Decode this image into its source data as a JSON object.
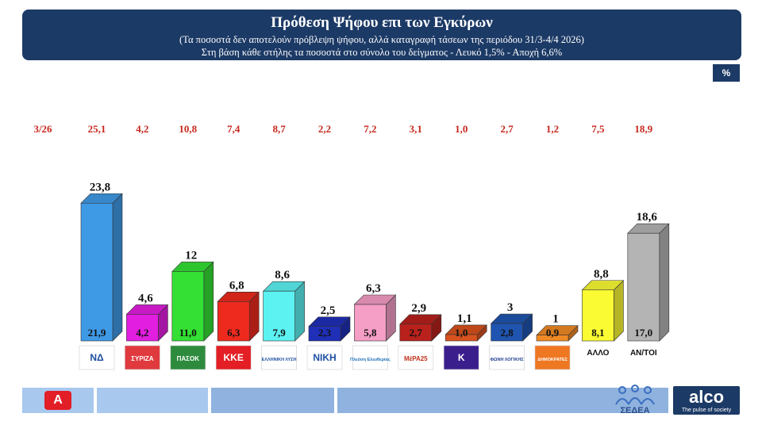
{
  "chart_data": {
    "type": "bar",
    "title": "Πρόθεση Ψήφου επι των Εγκύρων",
    "subtitle_lines": [
      "(Τα ποσοστά δεν αποτελούν πρόβλεψη ψήφου, αλλά καταγραφή τάσεων της περιόδου  31/3-4/4 2026)",
      "Στη βάση κάθε στήλης τα ποσοστά στο σύνολο του δείγματος - Λευκό 1,5% - Αποχή 6,6%"
    ],
    "unit": "%",
    "previous_label": "3/26",
    "ylim": [
      0,
      25
    ],
    "grid": false,
    "legend": "none",
    "series": [
      {
        "values": [
          23.8,
          4.6,
          12,
          6.8,
          8.6,
          2.5,
          6.3,
          2.9,
          1.1,
          3,
          1,
          8.8,
          18.6
        ]
      },
      {
        "values": [
          21.9,
          4.2,
          11.0,
          6.3,
          7.9,
          2.3,
          5.8,
          2.7,
          1.0,
          2.8,
          0.9,
          8.1,
          17.0
        ]
      }
    ],
    "categories": [
      {
        "color": "#3f9ae6",
        "top_label": "23,8",
        "base_label": "21,9",
        "prev": "25,1",
        "logo": "ΝΔ",
        "logo_bg": "#ffffff",
        "logo_fg": "#1d4fa0"
      },
      {
        "color": "#e21ee0",
        "top_label": "4,6",
        "base_label": "4,2",
        "prev": "4,2",
        "logo": "ΣΥΡΙΖΑ",
        "logo_bg": "#e03a3e",
        "logo_fg": "#ffffff"
      },
      {
        "color": "#33e033",
        "top_label": "12",
        "base_label": "11,0",
        "prev": "10,8",
        "logo": "ΠΑΣΟΚ",
        "logo_bg": "#2e8b3d",
        "logo_fg": "#ffffff"
      },
      {
        "color": "#ee2a1e",
        "top_label": "6,8",
        "base_label": "6,3",
        "prev": "7,4",
        "logo": "ΚΚΕ",
        "logo_bg": "#e31e24",
        "logo_fg": "#ffffff"
      },
      {
        "color": "#5cf2f2",
        "top_label": "8,6",
        "base_label": "7,9",
        "prev": "8,7",
        "logo": "ΕΛΛΗΝΙΚΗ ΛΥΣΗ",
        "logo_bg": "#ffffff",
        "logo_fg": "#1d4fa0"
      },
      {
        "color": "#1f2fb8",
        "top_label": "2,5",
        "base_label": "2,3",
        "prev": "2,2",
        "logo": "ΝΙΚΗ",
        "logo_bg": "#ffffff",
        "logo_fg": "#1d4fa0"
      },
      {
        "color": "#f59ec6",
        "top_label": "6,3",
        "base_label": "5,8",
        "prev": "7,2",
        "logo": "Πλεύση Ελευθερίας",
        "logo_bg": "#ffffff",
        "logo_fg": "#1d6fb8"
      },
      {
        "color": "#b8211c",
        "top_label": "2,9",
        "base_label": "2,7",
        "prev": "3,1",
        "logo": "ΜέΡΑ25",
        "logo_bg": "#ffffff",
        "logo_fg": "#c0301c"
      },
      {
        "color": "#d8521e",
        "top_label": "1,1",
        "base_label": "1,0",
        "prev": "1,0",
        "logo": "Κ",
        "logo_bg": "#3a1e8c",
        "logo_fg": "#ffffff"
      },
      {
        "color": "#1f55b0",
        "top_label": "3",
        "base_label": "2,8",
        "prev": "2,7",
        "logo": "ΦΩΝΗ ΛΟΓΙΚΗΣ",
        "logo_bg": "#ffffff",
        "logo_fg": "#1d3f8c"
      },
      {
        "color": "#f08a24",
        "top_label": "1",
        "base_label": "0,9",
        "prev": "1,2",
        "logo": "ΔΗΜΟΚΡΑΤΕΣ",
        "logo_bg": "#ee7722",
        "logo_fg": "#ffffff"
      },
      {
        "color": "#fbfb34",
        "top_label": "8,8",
        "base_label": "8,1",
        "prev": "7,5",
        "logo": "ΑΛΛΟ",
        "logo_bg": "#ffffff",
        "logo_fg": "#111111"
      },
      {
        "color": "#b4b4b4",
        "top_label": "18,6",
        "base_label": "17,0",
        "prev": "18,9",
        "logo": "ΑΝ/ΤΟΙ",
        "logo_bg": "#ffffff",
        "logo_fg": "#111111"
      }
    ]
  },
  "footer": {
    "alpha_logo": "Α",
    "sedea": "ΣΕΔΕΑ",
    "alco_name": "alco",
    "alco_tagline": "The pulse of society"
  }
}
